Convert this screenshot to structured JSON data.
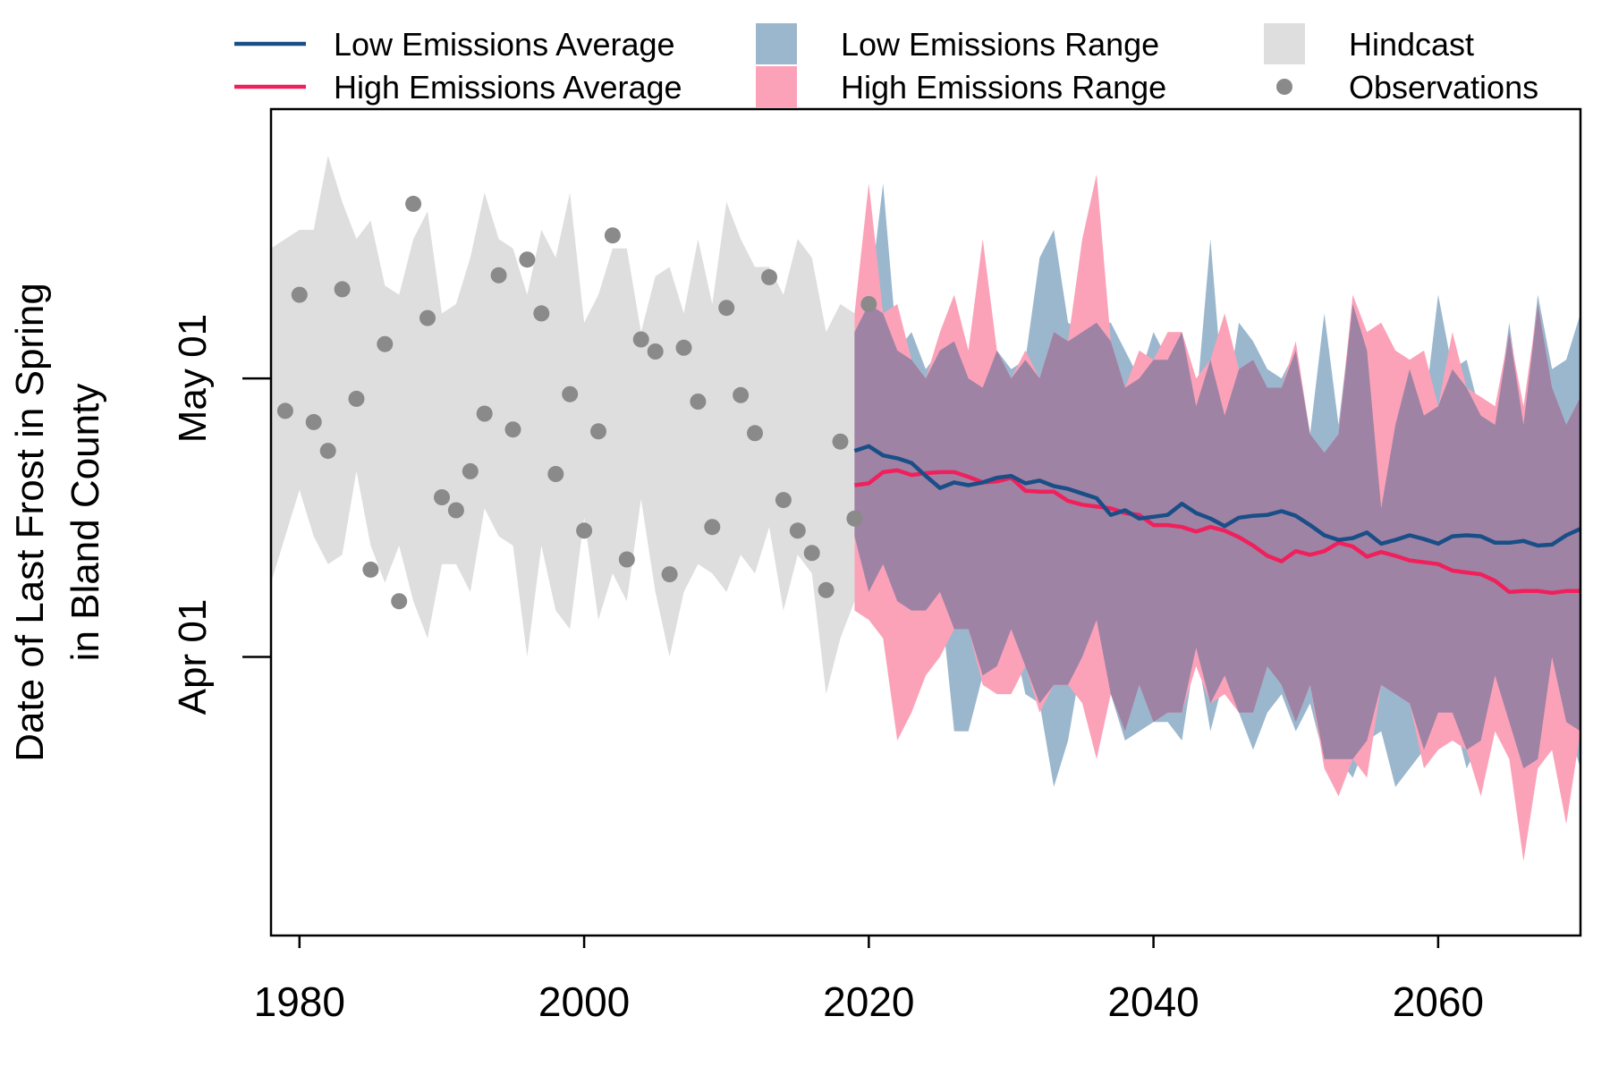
{
  "chart_data": {
    "type": "area",
    "title": "",
    "xlabel": "",
    "ylabel": [
      "Date of Last Frost in Spring",
      "in Bland County"
    ],
    "x_ticks": [
      1980,
      2000,
      2020,
      2040,
      2060
    ],
    "y_ticks": [
      {
        "value": 91,
        "label": "Apr 01"
      },
      {
        "value": 121,
        "label": "May 01"
      }
    ],
    "xlim": [
      1978,
      2070
    ],
    "ylim": [
      61,
      150
    ],
    "y_units": "day of year",
    "legend": {
      "position": "top",
      "entries": [
        {
          "label": "Low Emissions Average",
          "kind": "line",
          "color": "#1a4e86"
        },
        {
          "label": "High Emissions Average",
          "kind": "line",
          "color": "#f0205c"
        },
        {
          "label": "Low Emissions Range",
          "kind": "fill",
          "color": "#9bb7cd"
        },
        {
          "label": "High Emissions Range",
          "kind": "fill",
          "color": "#fba2b9"
        },
        {
          "label": "Hindcast",
          "kind": "fill",
          "color": "#dedede"
        },
        {
          "label": "Observations",
          "kind": "point",
          "color": "#8a8a8a"
        }
      ]
    },
    "colors": {
      "hindcast": "#dedede",
      "low_range": "#9bb7cd",
      "high_range": "#fba2b9",
      "overlap": "#9e83a5",
      "low_avg": "#1a4e86",
      "high_avg": "#f0205c",
      "observations": "#8a8a8a"
    },
    "hindcast": {
      "x": [
        1978,
        1979,
        1980,
        1981,
        1982,
        1983,
        1984,
        1985,
        1986,
        1987,
        1988,
        1989,
        1990,
        1991,
        1992,
        1993,
        1994,
        1995,
        1996,
        1997,
        1998,
        1999,
        2000,
        2001,
        2002,
        2003,
        2004,
        2005,
        2006,
        2007,
        2008,
        2009,
        2010,
        2011,
        2012,
        2013,
        2014,
        2015,
        2016,
        2017,
        2018,
        2019
      ],
      "upper": [
        135,
        136,
        137,
        137,
        145,
        140,
        136,
        138,
        131,
        130,
        136,
        139,
        128,
        129,
        134,
        141,
        136,
        135,
        130,
        137,
        134,
        141,
        127,
        130,
        135,
        135,
        126,
        132,
        133,
        128,
        136,
        129,
        140,
        136,
        133,
        133,
        130,
        136,
        134,
        126,
        129,
        128
      ],
      "lower": [
        99,
        104,
        109,
        104,
        101,
        102,
        111,
        103,
        99,
        103,
        97,
        93,
        101,
        101,
        98,
        107,
        104,
        103,
        91,
        103,
        96,
        94,
        106,
        95,
        100,
        97,
        108,
        98,
        91,
        98,
        101,
        100,
        98,
        102,
        100,
        105,
        96,
        102,
        100,
        87,
        93,
        97
      ]
    },
    "high_range": {
      "x": [
        2019,
        2020,
        2021,
        2022,
        2023,
        2024,
        2025,
        2026,
        2027,
        2028,
        2029,
        2030,
        2031,
        2032,
        2033,
        2034,
        2035,
        2036,
        2037,
        2038,
        2039,
        2040,
        2041,
        2042,
        2043,
        2044,
        2045,
        2046,
        2047,
        2048,
        2049,
        2050,
        2051,
        2052,
        2053,
        2054,
        2055,
        2056,
        2057,
        2058,
        2059,
        2060,
        2061,
        2062,
        2063,
        2064,
        2065,
        2066,
        2067,
        2068,
        2069,
        2070
      ],
      "upper": [
        128,
        142,
        128,
        129,
        123,
        121,
        126,
        130,
        124,
        136,
        124,
        121,
        124,
        121,
        126,
        125,
        136,
        143,
        125,
        120,
        124,
        123,
        126,
        126,
        121,
        123,
        128,
        122,
        123,
        120,
        120,
        125,
        115,
        113,
        115,
        130,
        126,
        127,
        124,
        123,
        124,
        118,
        126,
        120,
        119,
        118,
        126,
        118,
        129,
        120,
        116,
        119
      ],
      "lower": [
        96,
        95,
        93,
        82,
        85,
        89,
        91,
        94,
        94,
        88,
        87,
        87,
        90,
        85,
        88,
        88,
        86,
        80,
        87,
        83,
        88,
        84,
        85,
        85,
        90,
        86,
        87,
        85,
        85,
        90,
        88,
        84,
        88,
        79,
        76,
        80,
        78,
        88,
        87,
        86,
        79,
        81,
        82,
        81,
        76,
        83,
        80,
        69,
        79,
        81,
        73,
        83
      ]
    },
    "low_range": {
      "x": [
        2019,
        2020,
        2021,
        2022,
        2023,
        2024,
        2025,
        2026,
        2027,
        2028,
        2029,
        2030,
        2031,
        2032,
        2033,
        2034,
        2035,
        2036,
        2037,
        2038,
        2039,
        2040,
        2041,
        2042,
        2043,
        2044,
        2045,
        2046,
        2047,
        2048,
        2049,
        2050,
        2051,
        2052,
        2053,
        2054,
        2055,
        2056,
        2057,
        2058,
        2059,
        2060,
        2061,
        2062,
        2063,
        2064,
        2065,
        2066,
        2067,
        2068,
        2069,
        2070
      ],
      "upper": [
        126,
        129,
        142,
        124,
        126,
        122,
        124,
        125,
        121,
        120,
        124,
        122,
        123,
        134,
        137,
        127,
        126,
        127,
        127,
        124,
        121,
        126,
        123,
        126,
        118,
        136,
        117,
        127,
        125,
        122,
        121,
        124,
        115,
        128,
        116,
        129,
        124,
        107,
        116,
        122,
        117,
        130,
        122,
        123,
        117,
        116,
        127,
        116,
        130,
        122,
        123,
        128
      ],
      "lower": [
        104,
        98,
        101,
        97,
        96,
        96,
        98,
        83,
        83,
        89,
        90,
        94,
        87,
        86,
        77,
        82,
        91,
        95,
        87,
        82,
        83,
        84,
        84,
        82,
        92,
        83,
        89,
        85,
        81,
        85,
        87,
        83,
        86,
        80,
        80,
        78,
        82,
        83,
        77,
        79,
        81,
        85,
        85,
        79,
        82,
        89,
        84,
        79,
        80,
        91,
        84,
        79
      ]
    },
    "high_avg": {
      "x": [
        2019,
        2020,
        2021,
        2022,
        2023,
        2024,
        2025,
        2026,
        2027,
        2028,
        2029,
        2030,
        2031,
        2032,
        2033,
        2034,
        2035,
        2036,
        2037,
        2038,
        2039,
        2040,
        2041,
        2042,
        2043,
        2044,
        2045,
        2046,
        2047,
        2048,
        2049,
        2050,
        2051,
        2052,
        2053,
        2054,
        2055,
        2056,
        2057,
        2058,
        2059,
        2060,
        2061,
        2062,
        2063,
        2064,
        2065,
        2066,
        2067,
        2068,
        2069,
        2070
      ],
      "values": [
        109.5,
        109.7,
        110.9,
        111.1,
        110.6,
        110.8,
        110.9,
        110.9,
        110.4,
        109.8,
        109.9,
        110.3,
        108.9,
        108.8,
        108.8,
        107.8,
        107.4,
        107.2,
        107.0,
        106.5,
        106.3,
        105.2,
        105.2,
        105.0,
        104.5,
        105.0,
        104.6,
        103.9,
        103.0,
        101.9,
        101.3,
        102.4,
        102.0,
        102.4,
        103.3,
        102.9,
        101.8,
        102.3,
        101.9,
        101.4,
        101.2,
        101.0,
        100.3,
        100.1,
        99.9,
        99.2,
        98.0,
        98.1,
        98.1,
        97.9,
        98.1,
        98.1
      ]
    },
    "low_avg": {
      "x": [
        2019,
        2020,
        2021,
        2022,
        2023,
        2024,
        2025,
        2026,
        2027,
        2028,
        2029,
        2030,
        2031,
        2032,
        2033,
        2034,
        2035,
        2036,
        2037,
        2038,
        2039,
        2040,
        2041,
        2042,
        2043,
        2044,
        2045,
        2046,
        2047,
        2048,
        2049,
        2050,
        2051,
        2052,
        2053,
        2054,
        2055,
        2056,
        2057,
        2058,
        2059,
        2060,
        2061,
        2062,
        2063,
        2064,
        2065,
        2066,
        2067,
        2068,
        2069,
        2070
      ],
      "values": [
        113.2,
        113.7,
        112.7,
        112.4,
        111.9,
        110.5,
        109.2,
        109.8,
        109.5,
        109.8,
        110.3,
        110.5,
        109.7,
        110.0,
        109.4,
        109.1,
        108.6,
        108.1,
        106.3,
        106.8,
        105.9,
        106.1,
        106.3,
        107.5,
        106.5,
        105.9,
        105.1,
        106.0,
        106.2,
        106.3,
        106.7,
        106.2,
        105.2,
        104.1,
        103.6,
        103.8,
        104.4,
        103.2,
        103.6,
        104.1,
        103.7,
        103.2,
        104.0,
        104.1,
        104.0,
        103.3,
        103.3,
        103.5,
        103.0,
        103.1,
        104.1,
        104.8
      ]
    },
    "observations": {
      "x": [
        1979,
        1980,
        1981,
        1982,
        1983,
        1984,
        1985,
        1986,
        1987,
        1988,
        1989,
        1990,
        1991,
        1992,
        1993,
        1994,
        1995,
        1996,
        1997,
        1998,
        1999,
        2000,
        2001,
        2002,
        2003,
        2004,
        2005,
        2006,
        2007,
        2008,
        2009,
        2010,
        2011,
        2012,
        2013,
        2014,
        2015,
        2016,
        2017,
        2018,
        2019,
        2020
      ],
      "values": [
        117.5,
        130.0,
        116.3,
        113.2,
        130.6,
        118.8,
        100.4,
        124.7,
        97.0,
        139.8,
        127.5,
        108.2,
        106.8,
        111.0,
        117.2,
        132.1,
        115.5,
        133.8,
        128.0,
        110.7,
        119.3,
        104.6,
        115.3,
        136.4,
        101.5,
        125.2,
        123.9,
        99.9,
        124.3,
        118.5,
        105.0,
        128.6,
        119.2,
        115.1,
        131.9,
        107.9,
        104.6,
        102.2,
        98.2,
        114.2,
        105.9,
        129.0
      ]
    }
  }
}
